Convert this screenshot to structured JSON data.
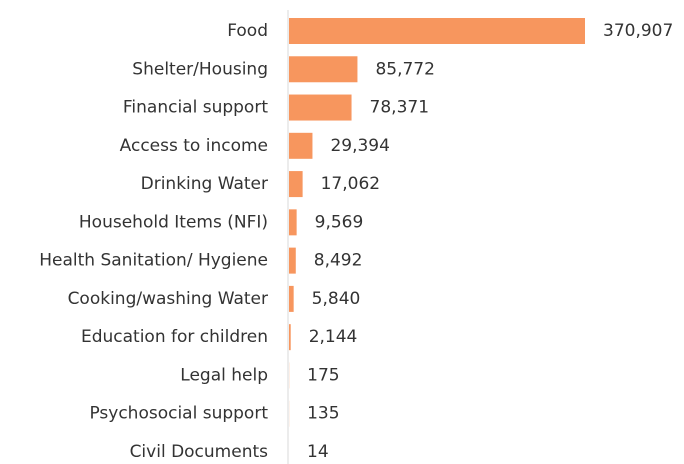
{
  "chart_data": {
    "type": "bar",
    "orientation": "horizontal",
    "color": "#f7965e",
    "categories": [
      "Food",
      "Shelter/Housing",
      "Financial support",
      "Access to income",
      "Drinking Water",
      "Household Items (NFI)",
      "Health Sanitation/ Hygiene",
      "Cooking/washing Water",
      "Education for children",
      "Legal help",
      "Psychosocial support",
      "Civil Documents"
    ],
    "values": [
      370907,
      85772,
      78371,
      29394,
      17062,
      9569,
      8492,
      5840,
      2144,
      175,
      135,
      14
    ],
    "value_labels": [
      "370,907",
      "85,772",
      "78,371",
      "29,394",
      "17,062",
      "9,569",
      "8,492",
      "5,840",
      "2,144",
      "175",
      "135",
      "14"
    ]
  }
}
